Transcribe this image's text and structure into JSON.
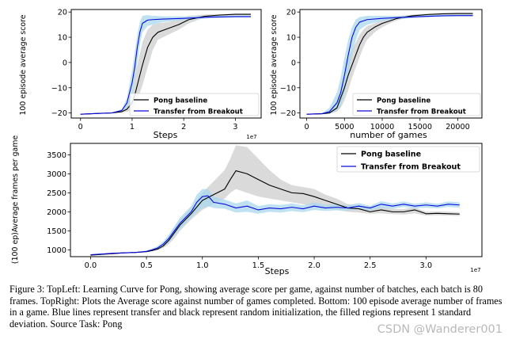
{
  "colors": {
    "baseline": "#000000",
    "transfer": "#0a0adb",
    "baseline_band": "#d3d3d3",
    "transfer_band": "#a9d8ee"
  },
  "chart_data": [
    {
      "type": "line",
      "xlabel": "Steps",
      "ylabel": "100 episode average score",
      "x_offset_label": "1e7",
      "xlim": [
        -0.18,
        3.5
      ],
      "ylim": [
        -22,
        21
      ],
      "xticks": [
        0,
        1,
        2,
        3
      ],
      "xtick_labels": [
        "0",
        "1",
        "2",
        "3"
      ],
      "yticks": [
        -20,
        -10,
        0,
        10,
        20
      ],
      "ytick_labels": [
        "−20",
        "−10",
        "0",
        "10",
        "20"
      ],
      "legend_position": "lower-right",
      "grid": false,
      "series": [
        {
          "name": "Pong baseline",
          "color": "#000000",
          "x": [
            0,
            0.3,
            0.6,
            0.8,
            0.9,
            1.0,
            1.05,
            1.1,
            1.2,
            1.3,
            1.4,
            1.5,
            1.7,
            1.9,
            2.1,
            2.4,
            2.7,
            3.0,
            3.3
          ],
          "y": [
            -20.5,
            -20.2,
            -20,
            -19.5,
            -18.5,
            -16,
            -13,
            -9,
            -1,
            6,
            10,
            12,
            13.5,
            15,
            17,
            18.3,
            18.8,
            19.1,
            19.1
          ],
          "band_low": [
            -20.6,
            -20.3,
            -20.1,
            -19.8,
            -19.5,
            -18.5,
            -17,
            -15,
            -9,
            -2,
            5,
            9,
            11,
            13,
            15.5,
            17.8,
            18.4,
            18.8,
            18.8
          ],
          "band_high": [
            -20.4,
            -20.1,
            -19.9,
            -19,
            -17,
            -12,
            -6,
            -1,
            8,
            13,
            15,
            15.5,
            16,
            17,
            18.5,
            19,
            19.2,
            19.4,
            19.4
          ]
        },
        {
          "name": "Transfer from Breakout",
          "color": "#0a0adb",
          "x": [
            0,
            0.3,
            0.6,
            0.8,
            0.9,
            1.0,
            1.05,
            1.1,
            1.15,
            1.2,
            1.3,
            1.4,
            1.6,
            2.0,
            2.5,
            3.0,
            3.3
          ],
          "y": [
            -20.5,
            -20.2,
            -20,
            -19,
            -16,
            -8,
            -2,
            6,
            12,
            15.5,
            16.8,
            17,
            17.2,
            17.5,
            18,
            18.2,
            18.2
          ],
          "band_low": [
            -20.6,
            -20.3,
            -20.1,
            -19.5,
            -18,
            -13,
            -7,
            0,
            7,
            12,
            14.5,
            15,
            16,
            16.8,
            17.5,
            17.8,
            17.8
          ],
          "band_high": [
            -20.4,
            -20.1,
            -19.9,
            -18.5,
            -14,
            -3,
            4,
            11,
            16,
            18.5,
            18.8,
            18.5,
            18.3,
            18.3,
            18.5,
            18.6,
            18.6
          ]
        }
      ]
    },
    {
      "type": "line",
      "xlabel": "number of games",
      "ylabel": "100 episode average score",
      "xlim": [
        -900,
        23200
      ],
      "ylim": [
        -22,
        21
      ],
      "xticks": [
        0,
        5000,
        10000,
        15000,
        20000
      ],
      "xtick_labels": [
        "0",
        "5000",
        "10000",
        "15000",
        "20000"
      ],
      "yticks": [
        -20,
        -10,
        0,
        10,
        20
      ],
      "ytick_labels": [
        "−20",
        "−10",
        "0",
        "10",
        "20"
      ],
      "legend_position": "lower-right",
      "grid": false,
      "series": [
        {
          "name": "Pong baseline",
          "color": "#000000",
          "x": [
            0,
            2000,
            3000,
            4000,
            4500,
            5000,
            5500,
            6000,
            6500,
            7000,
            7500,
            8000,
            9000,
            10000,
            11000,
            12000,
            14000,
            16000,
            18000,
            20000,
            22000
          ],
          "y": [
            -20.5,
            -20.3,
            -20,
            -18,
            -14,
            -10,
            -5,
            -1,
            3,
            7,
            10,
            12,
            14,
            15.5,
            16.5,
            17.5,
            18.5,
            19,
            19.3,
            19.4,
            19.4
          ],
          "band_low": [
            -20.6,
            -20.5,
            -20.3,
            -19.5,
            -18,
            -15,
            -11,
            -6,
            -2,
            2,
            6,
            9,
            12,
            14,
            15.5,
            16.8,
            18,
            18.6,
            18.9,
            19,
            19
          ],
          "band_high": [
            -20.4,
            -20.1,
            -19.5,
            -15,
            -10,
            -5,
            1,
            5,
            8,
            11,
            13,
            14.5,
            15.5,
            16.8,
            17.5,
            18.3,
            19,
            19.4,
            19.6,
            19.7,
            19.7
          ]
        },
        {
          "name": "Transfer from Breakout",
          "color": "#0a0adb",
          "x": [
            0,
            2000,
            3000,
            4000,
            4500,
            5000,
            5500,
            6000,
            6500,
            7000,
            8000,
            10000,
            12000,
            15000,
            18000,
            20000,
            22000
          ],
          "y": [
            -20.5,
            -20.3,
            -19.5,
            -16,
            -12,
            -5,
            3,
            10,
            14,
            16,
            17,
            17.5,
            17.8,
            18.2,
            18.5,
            18.6,
            18.6
          ],
          "band_low": [
            -20.6,
            -20.5,
            -20.3,
            -19,
            -17,
            -12,
            -5,
            3,
            9,
            13,
            15,
            16.5,
            17.2,
            17.8,
            18.2,
            18.3,
            18.3
          ],
          "band_high": [
            -20.4,
            -20.1,
            -18,
            -12,
            -6,
            2,
            9,
            14,
            17,
            18,
            18.5,
            18.5,
            18.5,
            18.7,
            18.9,
            19,
            19
          ]
        }
      ]
    },
    {
      "type": "line",
      "xlabel": "Steps",
      "ylabel": "(100 ep)Average frames per game",
      "x_offset_label": "1e7",
      "xlim": [
        -0.18,
        3.5
      ],
      "ylim": [
        820,
        3800
      ],
      "xticks": [
        0,
        0.5,
        1.0,
        1.5,
        2.0,
        2.5,
        3.0
      ],
      "xtick_labels": [
        "0.0",
        "0.5",
        "1.0",
        "1.5",
        "2.0",
        "2.5",
        "3.0"
      ],
      "yticks": [
        1000,
        1500,
        2000,
        2500,
        3000,
        3500
      ],
      "ytick_labels": [
        "1000",
        "1500",
        "2000",
        "2500",
        "3000",
        "3500"
      ],
      "legend_position": "upper-right",
      "grid": false,
      "series": [
        {
          "name": "Pong baseline",
          "color": "#000000",
          "x": [
            0,
            0.1,
            0.2,
            0.3,
            0.4,
            0.5,
            0.55,
            0.6,
            0.65,
            0.7,
            0.75,
            0.8,
            0.9,
            1.0,
            1.1,
            1.2,
            1.25,
            1.3,
            1.4,
            1.5,
            1.6,
            1.7,
            1.8,
            1.9,
            2.0,
            2.1,
            2.2,
            2.3,
            2.4,
            2.5,
            2.6,
            2.7,
            2.8,
            2.9,
            3.0,
            3.1,
            3.2,
            3.3
          ],
          "y": [
            860,
            880,
            900,
            920,
            930,
            950,
            980,
            1020,
            1100,
            1250,
            1450,
            1650,
            1950,
            2300,
            2450,
            2600,
            2850,
            3080,
            3000,
            2850,
            2700,
            2600,
            2500,
            2480,
            2400,
            2300,
            2200,
            2100,
            2080,
            2000,
            2050,
            2000,
            2000,
            2050,
            1950,
            1960,
            1950,
            1940
          ],
          "band_low": [
            850,
            870,
            890,
            910,
            920,
            940,
            960,
            990,
            1050,
            1150,
            1300,
            1500,
            1800,
            2050,
            2200,
            2350,
            2500,
            2600,
            2500,
            2400,
            2350,
            2300,
            2250,
            2200,
            2150,
            2100,
            2050,
            2000,
            1980,
            1950,
            1960,
            1940,
            1930,
            1960,
            1900,
            1910,
            1900,
            1890
          ],
          "band_high": [
            870,
            890,
            910,
            930,
            940,
            960,
            1000,
            1050,
            1150,
            1350,
            1600,
            1800,
            2100,
            2500,
            2800,
            3100,
            3400,
            3750,
            3700,
            3400,
            3100,
            2850,
            2700,
            2650,
            2600,
            2450,
            2350,
            2200,
            2180,
            2100,
            2130,
            2080,
            2070,
            2120,
            2000,
            2010,
            2000,
            1990
          ]
        },
        {
          "name": "Transfer from Breakout",
          "color": "#0a0adb",
          "x": [
            0,
            0.1,
            0.2,
            0.3,
            0.4,
            0.5,
            0.55,
            0.6,
            0.65,
            0.7,
            0.75,
            0.8,
            0.9,
            0.95,
            1.0,
            1.05,
            1.1,
            1.2,
            1.3,
            1.4,
            1.5,
            1.6,
            1.7,
            1.8,
            1.9,
            2.0,
            2.1,
            2.2,
            2.3,
            2.4,
            2.5,
            2.6,
            2.7,
            2.8,
            2.9,
            3.0,
            3.1,
            3.2,
            3.3
          ],
          "y": [
            870,
            890,
            910,
            920,
            930,
            960,
            1000,
            1050,
            1150,
            1300,
            1500,
            1700,
            2000,
            2250,
            2400,
            2420,
            2250,
            2200,
            2100,
            2150,
            2050,
            2100,
            2080,
            2120,
            2080,
            2150,
            2100,
            2120,
            2100,
            2150,
            2100,
            2200,
            2150,
            2200,
            2150,
            2180,
            2150,
            2200,
            2180
          ],
          "band_low": [
            860,
            880,
            900,
            910,
            920,
            940,
            970,
            1000,
            1080,
            1200,
            1380,
            1550,
            1850,
            2000,
            2100,
            2150,
            2100,
            2080,
            1980,
            2000,
            1950,
            2000,
            1980,
            2020,
            1990,
            2050,
            2020,
            2040,
            2030,
            2070,
            2040,
            2100,
            2080,
            2130,
            2090,
            2110,
            2090,
            2130,
            2110
          ],
          "band_high": [
            880,
            900,
            920,
            930,
            940,
            980,
            1030,
            1100,
            1220,
            1400,
            1620,
            1850,
            2150,
            2450,
            2600,
            2600,
            2400,
            2320,
            2220,
            2300,
            2150,
            2200,
            2180,
            2220,
            2170,
            2250,
            2180,
            2200,
            2170,
            2230,
            2160,
            2280,
            2220,
            2270,
            2210,
            2250,
            2210,
            2270,
            2250
          ]
        }
      ]
    }
  ],
  "caption": "Figure 3: TopLeft: Learning Curve for Pong, showing average score per game, against number of batches, each batch is 80 frames. TopRight: Plots the Average score against number of games completed. Bottom: 100 episode average number of frames in a game. Blue lines represent transfer and black represent random initialization, the filled regions represent 1 standard deviation. Source Task: Pong",
  "watermark": "CSDN @Wanderer001"
}
